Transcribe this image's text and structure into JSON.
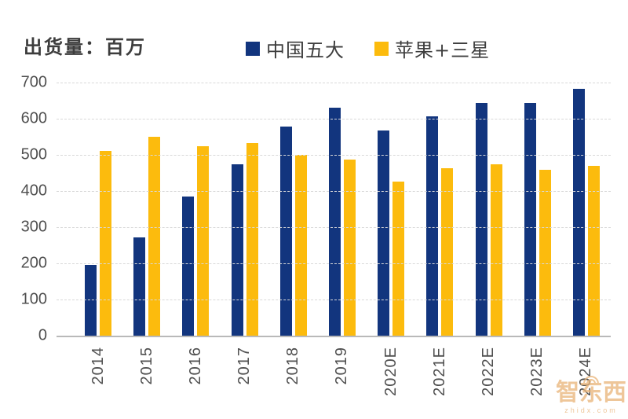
{
  "header": {
    "unit_label": "出货量：百万"
  },
  "legend": {
    "items": [
      {
        "label": "中国五大",
        "color": "#12357e"
      },
      {
        "label": "苹果+三星",
        "color": "#fcbb0d"
      }
    ]
  },
  "watermark": {
    "text": "智东西",
    "subtext": "zhidx.com"
  },
  "chart_data": {
    "type": "bar",
    "title": "出货量：百万",
    "categories": [
      "2014",
      "2015",
      "2016",
      "2017",
      "2018",
      "2019",
      "2020E",
      "2021E",
      "2022E",
      "2023E",
      "2024E"
    ],
    "series": [
      {
        "name": "中国五大",
        "color": "#12357e",
        "values": [
          195,
          272,
          385,
          474,
          578,
          630,
          568,
          606,
          643,
          643,
          683
        ]
      },
      {
        "name": "苹果+三星",
        "color": "#fcbb0d",
        "values": [
          510,
          550,
          525,
          532,
          500,
          487,
          427,
          462,
          475,
          458,
          470
        ]
      }
    ],
    "xlabel": "",
    "ylabel": "出货量（百万）",
    "ylim": [
      0,
      700
    ],
    "yticks": [
      0,
      100,
      200,
      300,
      400,
      500,
      600,
      700
    ],
    "grid": "horizontal-dashed",
    "legend_position": "top"
  }
}
